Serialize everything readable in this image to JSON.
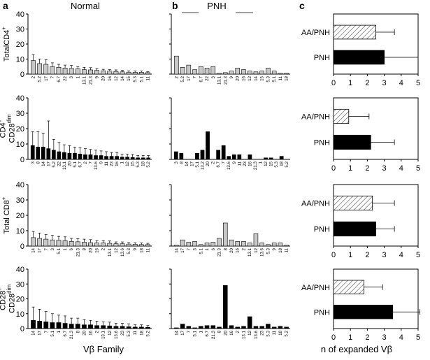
{
  "panels": {
    "a": {
      "letter": "a",
      "title": "Normal"
    },
    "b": {
      "letter": "b",
      "title": "PNH"
    },
    "c": {
      "letter": "c"
    }
  },
  "row_labels": [
    {
      "lines": [
        [
          "Total",
          "CD4",
          "+",
          ""
        ]
      ]
    },
    {
      "lines": [
        [
          "",
          "CD4",
          "+",
          ""
        ],
        [
          "",
          "CD28",
          "",
          "dim"
        ]
      ]
    },
    {
      "lines": [
        [
          "Total ",
          "CD8",
          "+",
          ""
        ]
      ]
    },
    {
      "lines": [
        [
          "",
          "CD28",
          "+",
          ""
        ],
        [
          "",
          "CD28",
          "",
          "dim"
        ]
      ]
    }
  ],
  "x_axis_labels": {
    "left": "Vβ Family",
    "right": "n of expanded Vβ"
  },
  "chart_data": [
    {
      "type": "bar",
      "panel": "a",
      "row": 1,
      "title": "Normal",
      "ylabel": "TotalCD4+",
      "ylim": [
        0,
        40
      ],
      "fill": "#c8c8c8",
      "categories": [
        "2",
        "5.2",
        "17",
        "7",
        "6.7",
        "22",
        "3",
        "1",
        "13.1",
        "21.3",
        "9",
        "20",
        "16",
        "12",
        "14",
        "15",
        "5.3",
        "5.1",
        "11"
      ],
      "values": [
        9,
        7,
        6.5,
        5,
        4.5,
        4,
        3.8,
        3.5,
        3,
        2.8,
        2.5,
        2.2,
        2,
        1.8,
        1.5,
        1.3,
        1.2,
        1.2,
        1
      ],
      "errors": [
        4,
        3,
        3,
        2.5,
        2,
        2,
        2,
        1.5,
        1.5,
        1.5,
        1.2,
        1,
        1,
        1,
        1,
        0.8,
        0.8,
        0.8,
        0.6
      ]
    },
    {
      "type": "bar",
      "panel": "b",
      "row": 1,
      "title": "PNH",
      "ylim": [
        0,
        40
      ],
      "fill": "#c8c8c8",
      "categories": [
        "2",
        "5.2",
        "17",
        "7",
        "6.7",
        "22",
        "3",
        "13.1",
        "21.3",
        "9",
        "20",
        "16",
        "12",
        "14",
        "15",
        "5.3",
        "5.1",
        "11",
        "18"
      ],
      "values": [
        12,
        4.5,
        6,
        3,
        5,
        4,
        5,
        0.5,
        1,
        2,
        4,
        3,
        2,
        1.5,
        2,
        4,
        2,
        0.5,
        0.5
      ],
      "errors": []
    },
    {
      "type": "bar",
      "panel": "a",
      "row": 2,
      "ylabel": "CD4+ CD28dim",
      "ylim": [
        0,
        40
      ],
      "fill": "#000000",
      "categories": [
        "3",
        "8",
        "14",
        "17",
        "5.2",
        "22",
        "13.1",
        "20",
        "5.1",
        "6.7",
        "2",
        "7",
        "13.6",
        "9",
        "11",
        "23",
        "16",
        "1",
        "12",
        "15",
        "5.3",
        "18",
        "5.2"
      ],
      "values": [
        9,
        8,
        8,
        7,
        6,
        5,
        4.5,
        4,
        4,
        3.5,
        3,
        3,
        2.5,
        2.5,
        2,
        2,
        2,
        1.5,
        1.5,
        1.2,
        1,
        1,
        1
      ],
      "errors": [
        9,
        10,
        9,
        18,
        7,
        6,
        5,
        5,
        4,
        4,
        4,
        3.5,
        3.5,
        3,
        3,
        2.5,
        2.5,
        2,
        2,
        2,
        1.5,
        1.5,
        1.5
      ]
    },
    {
      "type": "bar",
      "panel": "b",
      "row": 2,
      "ylim": [
        0,
        40
      ],
      "fill": "#000000",
      "categories": [
        "3",
        "8",
        "14",
        "17",
        "5.1",
        "13.2",
        "20",
        "2",
        "6.7",
        "7",
        "13.6",
        "9",
        "11",
        "23",
        "16",
        "21.3",
        "1",
        "12",
        "15",
        "5.3",
        "18",
        "5.2"
      ],
      "values": [
        5,
        4,
        0,
        0,
        4,
        6,
        18,
        0,
        6,
        9,
        2,
        3,
        3,
        0,
        3,
        0,
        0,
        1,
        1,
        0,
        2,
        0
      ],
      "errors": []
    },
    {
      "type": "bar",
      "panel": "a",
      "row": 3,
      "ylabel": "Total CD8+",
      "ylim": [
        0,
        40
      ],
      "fill": "#c8c8c8",
      "categories": [
        "14",
        "17",
        "7",
        "3",
        "5.1",
        "1",
        "6",
        "21.3",
        "8",
        "20",
        "16",
        "2",
        "13.1",
        "12",
        "13.6",
        "5.3",
        "9",
        "18",
        "11"
      ],
      "values": [
        5.5,
        5,
        4.5,
        4,
        3.8,
        3.5,
        3,
        2.8,
        2.5,
        2.2,
        2,
        2,
        1.8,
        1.5,
        1.5,
        1.3,
        1.2,
        1,
        1
      ],
      "errors": [
        4,
        3.5,
        3,
        3,
        2.5,
        2.5,
        2,
        2,
        2,
        2,
        1.5,
        1.5,
        1.5,
        1.2,
        1.2,
        1,
        1,
        1,
        0.8
      ]
    },
    {
      "type": "bar",
      "panel": "b",
      "row": 3,
      "ylim": [
        0,
        40
      ],
      "fill": "#c8c8c8",
      "categories": [
        "14",
        "17",
        "7",
        "3",
        "5.1",
        "1",
        "6",
        "21.3",
        "8",
        "20",
        "16",
        "2",
        "13.1",
        "12",
        "13.6",
        "5.3",
        "9",
        "18",
        "11"
      ],
      "values": [
        0.5,
        4,
        2.5,
        3,
        1,
        2,
        2.5,
        5,
        15,
        4,
        3,
        3,
        2,
        8,
        2,
        1,
        2,
        2,
        0.5
      ],
      "errors": []
    },
    {
      "type": "bar",
      "panel": "a",
      "row": 4,
      "ylabel": "CD28+ CD28dim",
      "ylim": [
        0,
        40
      ],
      "fill": "#000000",
      "categories": [
        "14",
        "17",
        "7",
        "5.1",
        "1",
        "6.7",
        "21.3",
        "8",
        "20",
        "16",
        "2",
        "13.1",
        "12",
        "13.6",
        "23",
        "5.3",
        "11",
        "18",
        "5.2"
      ],
      "values": [
        5.5,
        5,
        4.5,
        4,
        4,
        3.5,
        3,
        3,
        2.5,
        2.5,
        2,
        2,
        1.8,
        1.5,
        1.5,
        1.2,
        1,
        1,
        0.8
      ],
      "errors": [
        9,
        8,
        7,
        6,
        5,
        5,
        4,
        4,
        3.5,
        3,
        3,
        2.5,
        2.5,
        2,
        2,
        2,
        1.5,
        1.5,
        1.2
      ]
    },
    {
      "type": "bar",
      "panel": "b",
      "row": 4,
      "ylim": [
        0,
        40
      ],
      "fill": "#000000",
      "categories": [
        "14",
        "17",
        "7",
        "5.1",
        "1",
        "6.7",
        "21.3",
        "8",
        "20",
        "16",
        "2",
        "13.1",
        "12",
        "13.6",
        "23",
        "5.3",
        "11",
        "18",
        "5.2"
      ],
      "values": [
        0.5,
        3,
        1.5,
        0.5,
        1.5,
        2,
        2,
        1,
        29,
        2,
        1,
        1.5,
        8,
        1.5,
        1.5,
        3,
        1,
        1.5,
        1
      ],
      "errors": []
    },
    {
      "type": "bar",
      "orientation": "horizontal",
      "panel": "c",
      "row": 1,
      "xlim": [
        0,
        5
      ],
      "categories": [
        "AA/PNH",
        "PNH"
      ],
      "values": [
        2.5,
        3
      ],
      "errors": [
        1.1,
        2
      ],
      "fills": [
        "hatch",
        "#000000"
      ]
    },
    {
      "type": "bar",
      "orientation": "horizontal",
      "panel": "c",
      "row": 2,
      "xlim": [
        0,
        5
      ],
      "categories": [
        "AA/PNH",
        "PNH"
      ],
      "values": [
        0.9,
        2.2
      ],
      "errors": [
        1.2,
        1.4
      ],
      "fills": [
        "hatch",
        "#000000"
      ]
    },
    {
      "type": "bar",
      "orientation": "horizontal",
      "panel": "c",
      "row": 3,
      "xlim": [
        0,
        5
      ],
      "categories": [
        "AA/PNH",
        "PNH"
      ],
      "values": [
        2.3,
        2.5
      ],
      "errors": [
        1.3,
        1.1
      ],
      "fills": [
        "hatch",
        "#000000"
      ]
    },
    {
      "type": "bar",
      "orientation": "horizontal",
      "panel": "c",
      "row": 4,
      "xlim": [
        0,
        5
      ],
      "categories": [
        "AA/PNH",
        "PNH"
      ],
      "values": [
        1.8,
        3.5
      ],
      "errors": [
        1.1,
        1.6
      ],
      "fills": [
        "hatch",
        "#000000"
      ],
      "xlabel": "n of expanded Vβ"
    }
  ]
}
